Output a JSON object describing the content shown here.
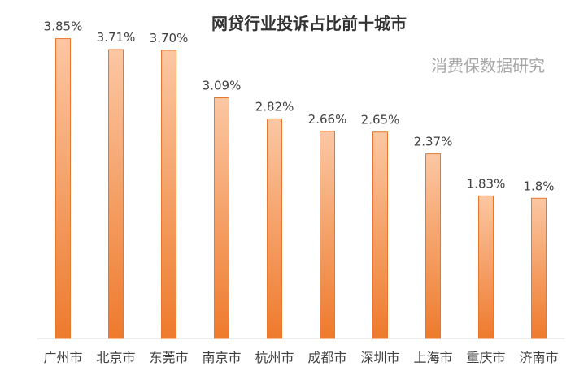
{
  "chart_data": {
    "type": "bar",
    "title": "网贷行业投诉占比前十城市",
    "watermark": "消费保数据研究",
    "categories": [
      "广州市",
      "北京市",
      "东莞市",
      "南京市",
      "杭州市",
      "成都市",
      "深圳市",
      "上海市",
      "重庆市",
      "济南市"
    ],
    "values": [
      3.85,
      3.71,
      3.7,
      3.09,
      2.82,
      2.66,
      2.65,
      2.37,
      1.83,
      1.8
    ],
    "data_labels": [
      "3.85%",
      "3.71%",
      "3.70%",
      "3.09%",
      "2.82%",
      "2.66%",
      "2.65%",
      "2.37%",
      "1.83%",
      "1.8%"
    ],
    "ylim": [
      0,
      4.2
    ],
    "grid": false,
    "legend": "none",
    "colors": {
      "bar_top": "#fbc7a3",
      "bar_bottom": "#ee7a2c",
      "bar_border": "#e8772e",
      "axis": "#d9d9d9"
    }
  }
}
